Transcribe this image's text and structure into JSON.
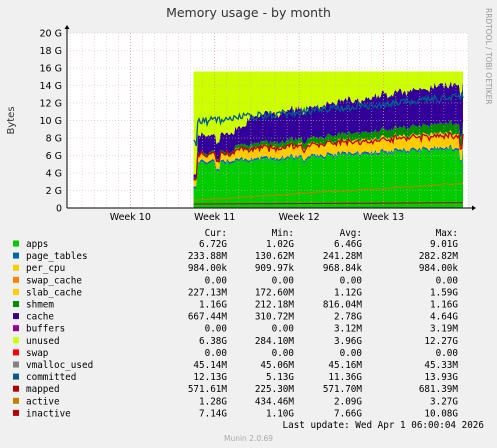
{
  "chart_data": {
    "type": "area",
    "title": "Memory usage - by month",
    "ylabel": "Bytes",
    "watermark": "RRDTOOL / TOBI OETIKER",
    "y_ticks": [
      "0",
      "2 G",
      "4 G",
      "6 G",
      "8 G",
      "10 G",
      "12 G",
      "14 G",
      "16 G",
      "18 G",
      "20 G"
    ],
    "ylim": [
      0,
      20
    ],
    "y_unit": "G",
    "x_ticks": [
      "Week 10",
      "Week 11",
      "Week 12",
      "Week 13"
    ],
    "data_start_week": 10.75,
    "x_range_weeks": [
      9.25,
      14.0
    ],
    "grid": true,
    "legend_header": [
      "Cur:",
      "Min:",
      "Avg:",
      "Max:"
    ],
    "series": [
      {
        "name": "apps",
        "color": "#00cc00",
        "cur": "6.72G",
        "min": "1.02G",
        "avg": "6.46G",
        "max": "9.01G"
      },
      {
        "name": "page_tables",
        "color": "#0066b3",
        "cur": "233.88M",
        "min": "130.62M",
        "avg": "241.28M",
        "max": "282.82M"
      },
      {
        "name": "per_cpu",
        "color": "#ffcc00",
        "cur": "984.00k",
        "min": "909.97k",
        "avg": "968.84k",
        "max": "984.00k"
      },
      {
        "name": "swap_cache",
        "color": "#ff8000",
        "cur": "0.00",
        "min": "0.00",
        "avg": "0.00",
        "max": "0.00"
      },
      {
        "name": "slab_cache",
        "color": "#ffcc00",
        "cur": "227.13M",
        "min": "172.60M",
        "avg": "1.12G",
        "max": "1.59G"
      },
      {
        "name": "shmem",
        "color": "#008f00",
        "cur": "1.16G",
        "min": "212.18M",
        "avg": "816.04M",
        "max": "1.16G"
      },
      {
        "name": "cache",
        "color": "#330099",
        "cur": "667.44M",
        "min": "310.72M",
        "avg": "2.78G",
        "max": "4.64G"
      },
      {
        "name": "buffers",
        "color": "#990099",
        "cur": "0.00",
        "min": "0.00",
        "avg": "3.12M",
        "max": "3.19M"
      },
      {
        "name": "unused",
        "color": "#ccff00",
        "cur": "6.38G",
        "min": "284.10M",
        "avg": "3.96G",
        "max": "12.27G"
      },
      {
        "name": "swap",
        "color": "#ff0000",
        "cur": "0.00",
        "min": "0.00",
        "avg": "0.00",
        "max": "0.00"
      },
      {
        "name": "vmalloc_used",
        "color": "#808080",
        "cur": "45.14M",
        "min": "45.06M",
        "avg": "45.16M",
        "max": "45.33M"
      },
      {
        "name": "committed",
        "color": "#005b8f",
        "cur": "12.13G",
        "min": "5.13G",
        "avg": "11.36G",
        "max": "13.93G"
      },
      {
        "name": "mapped",
        "color": "#b30000",
        "cur": "571.61M",
        "min": "225.30M",
        "avg": "571.70M",
        "max": "681.39M"
      },
      {
        "name": "active",
        "color": "#c08000",
        "cur": "1.28G",
        "min": "434.46M",
        "avg": "2.09G",
        "max": "3.27G"
      },
      {
        "name": "inactive",
        "color": "#c00000",
        "cur": "7.14G",
        "min": "1.10G",
        "avg": "7.66G",
        "max": "10.08G"
      }
    ],
    "total_physical": 15.6,
    "last_update": "Last update: Wed Apr  1 06:00:04 2026",
    "footer": "Munin 2.0.69"
  }
}
